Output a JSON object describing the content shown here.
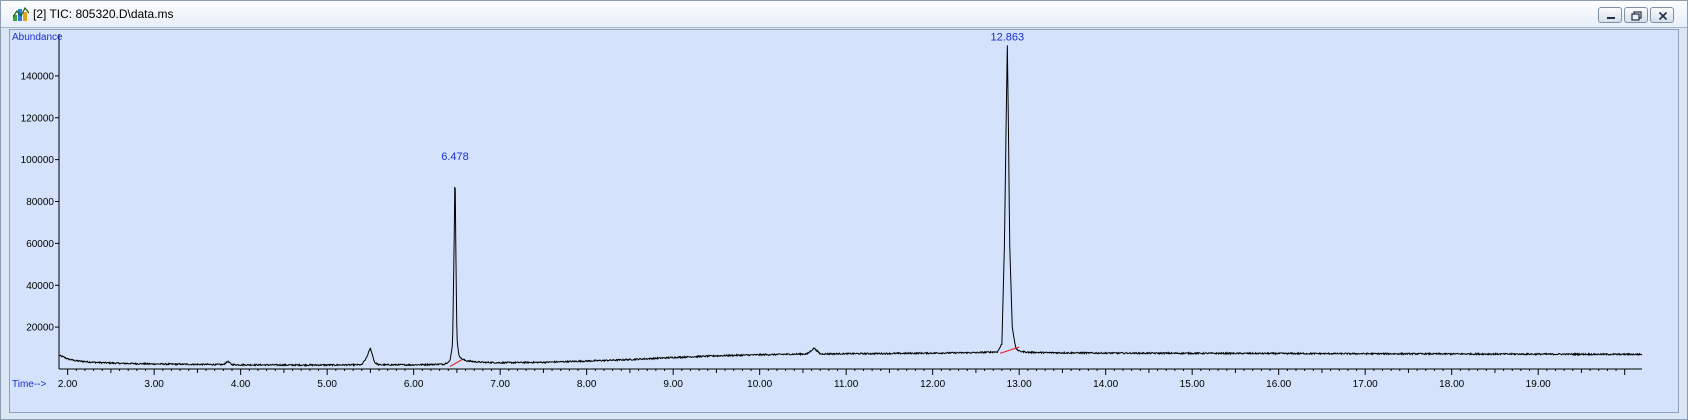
{
  "window": {
    "title": "[2] TIC: 805320.D\\data.ms",
    "icon": "chromatogram-app-icon",
    "buttons": [
      {
        "name": "minimize-button",
        "icon": "minimize-icon"
      },
      {
        "name": "restore-button",
        "icon": "restore-icon"
      },
      {
        "name": "close-button",
        "icon": "close-icon"
      }
    ]
  },
  "colors": {
    "plot_background": "#d4e3fb",
    "trace": "#000000",
    "baseline": "#e0303a",
    "labels": "#1a2fd0"
  },
  "chart_data": {
    "type": "line",
    "title": "",
    "ylabel": "Abundance",
    "xlabel": "Time-->",
    "xlim": [
      1.9,
      20.2
    ],
    "ylim": [
      0,
      160000
    ],
    "x_ticks": [
      2.0,
      3.0,
      4.0,
      5.0,
      6.0,
      7.0,
      8.0,
      9.0,
      10.0,
      11.0,
      12.0,
      13.0,
      14.0,
      15.0,
      16.0,
      17.0,
      18.0,
      19.0
    ],
    "x_tick_labels": [
      "2.00",
      "3.00",
      "4.00",
      "5.00",
      "6.00",
      "7.00",
      "8.00",
      "9.00",
      "10.00",
      "11.00",
      "12.00",
      "13.00",
      "14.00",
      "15.00",
      "16.00",
      "17.00",
      "18.00",
      "19.00"
    ],
    "y_ticks": [
      20000,
      40000,
      60000,
      80000,
      100000,
      120000,
      140000
    ],
    "y_tick_labels": [
      "20000",
      "40000",
      "60000",
      "80000",
      "100000",
      "120000",
      "140000"
    ],
    "grid": false,
    "series": [
      {
        "x": [
          1.9,
          1.95,
          2.0,
          2.1,
          2.3,
          2.6,
          3.0,
          3.5,
          3.8,
          3.85,
          3.9,
          4.0,
          4.5,
          5.0,
          5.4,
          5.45,
          5.5,
          5.55,
          5.6,
          6.0,
          6.35,
          6.42,
          6.45,
          6.468,
          6.478,
          6.488,
          6.5,
          6.52,
          6.55,
          6.6,
          6.7,
          6.8,
          7.0,
          7.5,
          8.0,
          8.5,
          9.0,
          9.5,
          10.0,
          10.55,
          10.63,
          10.7,
          11.0,
          11.5,
          12.0,
          12.5,
          12.75,
          12.8,
          12.83,
          12.85,
          12.863,
          12.875,
          12.89,
          12.92,
          12.96,
          13.0,
          13.1,
          13.3,
          14.0,
          15.0,
          16.0,
          17.0,
          18.0,
          19.0,
          20.0,
          20.2
        ],
        "y": [
          6500,
          5800,
          4800,
          3900,
          3200,
          2700,
          2400,
          2200,
          2100,
          3600,
          2100,
          2000,
          1900,
          1900,
          2000,
          5000,
          10000,
          3000,
          2000,
          2000,
          2300,
          3800,
          12000,
          60000,
          98000,
          55000,
          15000,
          7000,
          5000,
          4000,
          3500,
          3200,
          3000,
          3200,
          3800,
          4500,
          5500,
          6300,
          6800,
          7200,
          10000,
          7200,
          7300,
          7400,
          7600,
          7800,
          8200,
          12000,
          60000,
          120000,
          155000,
          118000,
          60000,
          20000,
          10000,
          8500,
          8000,
          7800,
          7600,
          7500,
          7400,
          7300,
          7200,
          7100,
          7000,
          7000
        ]
      }
    ],
    "peaks": [
      {
        "rt": 6.478,
        "label": "6.478",
        "height": 98000
      },
      {
        "rt": 12.863,
        "label": "12.863",
        "height": 155000
      }
    ],
    "baselines": [
      {
        "x1": 6.42,
        "y1": 1200,
        "x2": 6.56,
        "y2": 4500
      },
      {
        "x1": 12.78,
        "y1": 7500,
        "x2": 13.0,
        "y2": 10500
      }
    ]
  }
}
